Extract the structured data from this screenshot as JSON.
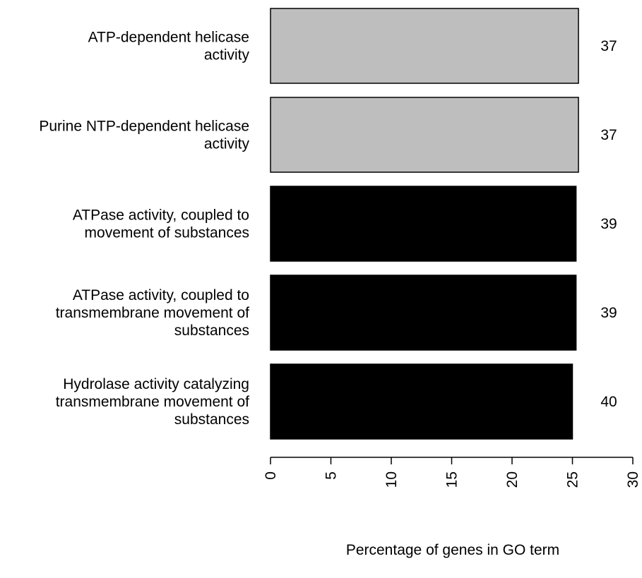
{
  "chart_data": {
    "type": "bar",
    "orientation": "horizontal",
    "categories": [
      [
        "ATP-dependent helicase",
        "activity"
      ],
      [
        "Purine NTP-dependent helicase",
        "activity"
      ],
      [
        "ATPase activity, coupled to",
        "movement of substances"
      ],
      [
        "ATPase activity, coupled to",
        "transmembrane movement of",
        "substances"
      ],
      [
        "Hydrolase activity catalyzing",
        "transmembrane movement of",
        "substances"
      ]
    ],
    "values": [
      25.5,
      25.5,
      25.3,
      25.3,
      25.0
    ],
    "bar_labels": [
      "37",
      "37",
      "39",
      "39",
      "40"
    ],
    "bar_colors": [
      "#bebebe",
      "#bebebe",
      "#000000",
      "#000000",
      "#000000"
    ],
    "xlim": [
      0,
      30
    ],
    "xticks": [
      0,
      5,
      10,
      15,
      20,
      25,
      30
    ],
    "xlabel": "Percentage of genes in GO term",
    "ylabel": "",
    "title": "",
    "grid": false,
    "legend": null
  }
}
